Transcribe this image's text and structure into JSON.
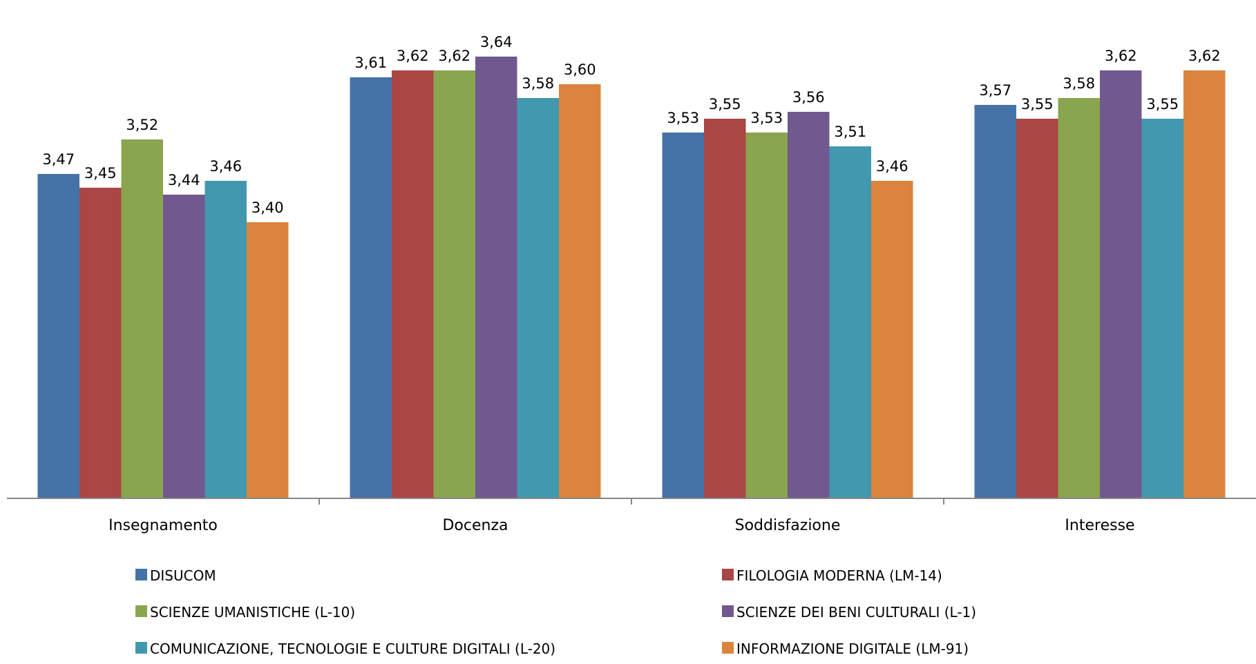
{
  "chart_data": {
    "type": "bar",
    "categories": [
      "Insegnamento",
      "Docenza",
      "Soddisfazione",
      "Interesse"
    ],
    "series": [
      {
        "name": "DISUCOM",
        "color": "#4572a7",
        "values": [
          3.47,
          3.61,
          3.53,
          3.57
        ],
        "labels": [
          "3,47",
          "3,61",
          "3,53",
          "3,57"
        ]
      },
      {
        "name": "FILOLOGIA MODERNA (LM-14)",
        "color": "#aa4643",
        "values": [
          3.45,
          3.62,
          3.55,
          3.55
        ],
        "labels": [
          "3,45",
          "3,62",
          "3,55",
          "3,55"
        ]
      },
      {
        "name": "SCIENZE UMANISTICHE (L-10)",
        "color": "#89a54e",
        "values": [
          3.52,
          3.62,
          3.53,
          3.58
        ],
        "labels": [
          "3,52",
          "3,62",
          "3,53",
          "3,58"
        ]
      },
      {
        "name": "SCIENZE DEI BENI CULTURALI (L-1)",
        "color": "#71588f",
        "values": [
          3.44,
          3.64,
          3.56,
          3.62
        ],
        "labels": [
          "3,44",
          "3,64",
          "3,56",
          "3,62"
        ]
      },
      {
        "name": "COMUNICAZIONE, TECNOLOGIE E CULTURE DIGITALI (L-20)",
        "color": "#4198af",
        "values": [
          3.46,
          3.58,
          3.51,
          3.55
        ],
        "labels": [
          "3,46",
          "3,58",
          "3,51",
          "3,55"
        ]
      },
      {
        "name": "INFORMAZIONE DIGITALE (LM-91)",
        "color": "#db843d",
        "values": [
          3.4,
          3.6,
          3.46,
          3.62
        ],
        "labels": [
          "3,40",
          "3,60",
          "3,46",
          "3,62"
        ]
      }
    ],
    "title": "",
    "xlabel": "",
    "ylabel": "",
    "ylim": [
      3.0,
      3.7
    ],
    "grid": false,
    "legend_position": "bottom",
    "axis_color": "#868686"
  }
}
